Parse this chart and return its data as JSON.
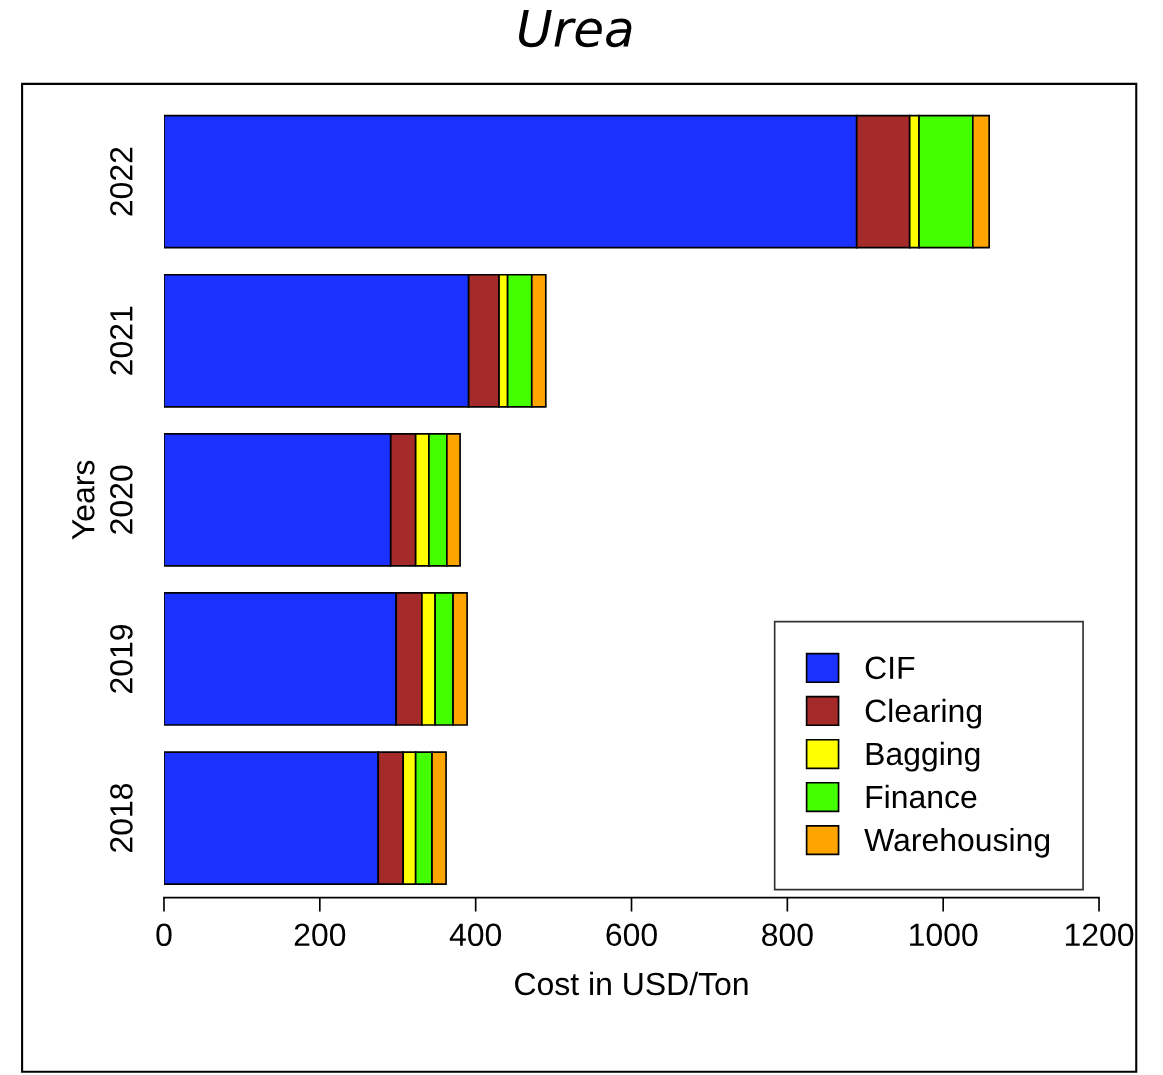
{
  "chart_data": {
    "type": "bar",
    "title": "Urea",
    "xlabel": "Cost in USD/Ton",
    "ylabel": "Years",
    "orientation": "horizontal",
    "stacked": true,
    "categories": [
      "2022",
      "2021",
      "2020",
      "2019",
      "2018"
    ],
    "series": [
      {
        "name": "CIF",
        "color": "#1a31ff",
        "values": [
          889,
          391,
          291,
          298,
          275
        ]
      },
      {
        "name": "Clearing",
        "color": "#a52a2a",
        "values": [
          68,
          39,
          32,
          33,
          32
        ]
      },
      {
        "name": "Bagging",
        "color": "#ffff00",
        "values": [
          12,
          11,
          17,
          17,
          16
        ]
      },
      {
        "name": "Finance",
        "color": "#44ff00",
        "values": [
          69,
          31,
          23,
          23,
          21
        ]
      },
      {
        "name": "Warehousing",
        "color": "#ffa500",
        "values": [
          21,
          18,
          17,
          18,
          18
        ]
      }
    ],
    "xlim": [
      0,
      1200
    ],
    "xticks": [
      0,
      200,
      400,
      600,
      800,
      1000,
      1200
    ],
    "legend": "bottom right",
    "grid": false
  }
}
